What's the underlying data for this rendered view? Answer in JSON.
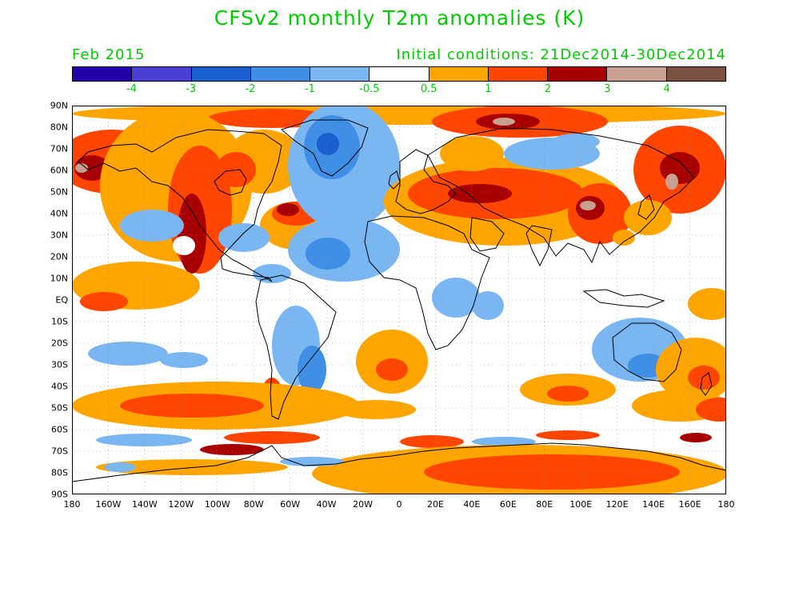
{
  "title": "CFSv2 monthly T2m anomalies (K)",
  "month": "Feb 2015",
  "initial_conditions": "Initial conditions: 21Dec2014-30Dec2014",
  "colorbar": {
    "colors": [
      "#2200aa",
      "#4b3fd6",
      "#1a5fcf",
      "#3f8fe6",
      "#7ab6f2",
      "#ffffff",
      "#ffa500",
      "#ff4500",
      "#a80000",
      "#c8a090",
      "#7a5040"
    ],
    "tick_labels": [
      "-4",
      "-3",
      "-2",
      "-1",
      "-0.5",
      "0.5",
      "1",
      "2",
      "3",
      "4"
    ]
  },
  "axes": {
    "lat_labels": [
      "90N",
      "80N",
      "70N",
      "60N",
      "50N",
      "40N",
      "30N",
      "20N",
      "10N",
      "EQ",
      "10S",
      "20S",
      "30S",
      "40S",
      "50S",
      "60S",
      "70S",
      "80S",
      "90S"
    ],
    "lon_labels": [
      "180",
      "160W",
      "140W",
      "120W",
      "100W",
      "80W",
      "60W",
      "40W",
      "20W",
      "0",
      "20E",
      "40E",
      "60E",
      "80E",
      "100E",
      "120E",
      "140E",
      "160E",
      "180"
    ]
  }
}
